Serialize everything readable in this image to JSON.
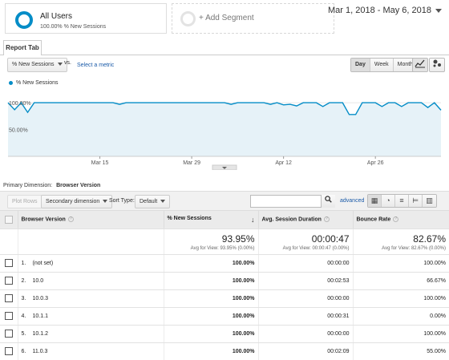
{
  "segments": [
    {
      "name": "All Users",
      "sub": "100.00% % New Sessions"
    },
    {
      "name": "+ Add Segment"
    }
  ],
  "date_range": "Mar 1, 2018 - May 6, 2018",
  "tabs": [
    {
      "label": "Report Tab"
    }
  ],
  "controls": {
    "metric": "% New Sessions",
    "vs": "vs.",
    "select_metric": "Select a metric",
    "granularity": [
      "Day",
      "Week",
      "Month"
    ],
    "granularity_selected": "Day"
  },
  "chart_data": {
    "type": "area",
    "legend": "% New Sessions",
    "y_labels": [
      "100.00%",
      "50.00%"
    ],
    "ylim": [
      0,
      1.3
    ],
    "x_ticks": [
      "Mar 15",
      "Mar 29",
      "Apr 12",
      "Apr 26"
    ],
    "x_tick_index": [
      14,
      28,
      42,
      56
    ],
    "series": [
      {
        "name": "% New Sessions",
        "values": [
          1.0,
          0.87,
          1.0,
          0.82,
          1.0,
          1.0,
          1.0,
          1.0,
          1.0,
          1.0,
          1.0,
          1.0,
          1.0,
          1.0,
          1.0,
          1.0,
          1.0,
          0.97,
          1.0,
          1.0,
          1.0,
          1.0,
          1.0,
          1.0,
          1.0,
          1.0,
          1.0,
          1.0,
          1.0,
          1.0,
          1.0,
          1.0,
          1.0,
          1.0,
          0.97,
          1.0,
          1.0,
          1.0,
          1.0,
          1.0,
          0.97,
          1.0,
          0.96,
          0.97,
          0.94,
          1.0,
          1.0,
          1.0,
          0.93,
          1.0,
          1.0,
          1.0,
          0.78,
          0.78,
          1.0,
          1.0,
          1.0,
          0.93,
          1.0,
          1.0,
          0.93,
          1.0,
          1.0,
          1.0,
          0.91,
          1.0,
          0.86
        ]
      }
    ],
    "color": "#058dc7"
  },
  "primary_dimension": {
    "label": "Primary Dimension:",
    "value": "Browser Version"
  },
  "toolbar": {
    "plot_rows": "Plot Rows",
    "secondary_dimension": "Secondary dimension",
    "sort_type_label": "Sort Type:",
    "sort_type_value": "Default",
    "search_placeholder": "",
    "advanced": "advanced"
  },
  "table": {
    "headers": [
      "Browser Version",
      "% New Sessions",
      "Avg. Session Duration",
      "Bounce Rate"
    ],
    "totals": [
      {
        "value": "93.95%",
        "sub": "Avg for View: 93.95% (0.00%)"
      },
      {
        "value": "00:00:47",
        "sub": "Avg for View: 00:00:47 (0.00%)"
      },
      {
        "value": "82.67%",
        "sub": "Avg for View: 82.67% (0.00%)"
      }
    ],
    "rows": [
      {
        "idx": "1.",
        "name": "(not set)",
        "new": "100.00%",
        "dur": "00:00:00",
        "bounce": "100.00%"
      },
      {
        "idx": "2.",
        "name": "10.0",
        "new": "100.00%",
        "dur": "00:02:53",
        "bounce": "66.67%"
      },
      {
        "idx": "3.",
        "name": "10.0.3",
        "new": "100.00%",
        "dur": "00:00:00",
        "bounce": "100.00%"
      },
      {
        "idx": "4.",
        "name": "10.1.1",
        "new": "100.00%",
        "dur": "00:00:31",
        "bounce": "0.00%"
      },
      {
        "idx": "5.",
        "name": "10.1.2",
        "new": "100.00%",
        "dur": "00:00:00",
        "bounce": "100.00%"
      },
      {
        "idx": "6.",
        "name": "11.0.3",
        "new": "100.00%",
        "dur": "00:02:09",
        "bounce": "55.00%"
      }
    ]
  }
}
